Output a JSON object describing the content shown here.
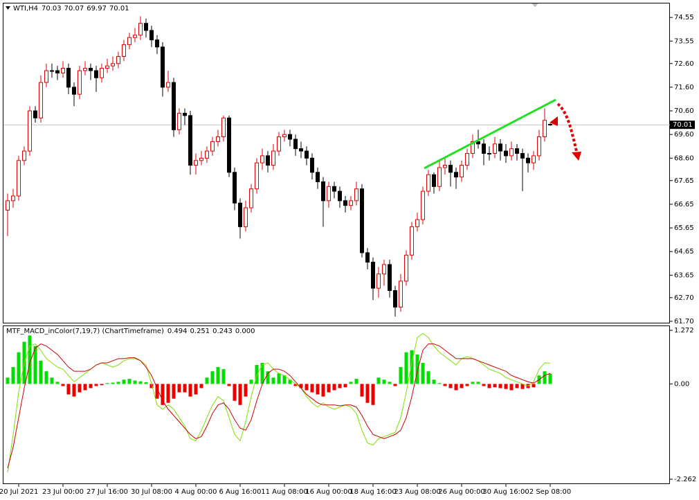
{
  "chart_data": [
    {
      "type": "candlestick",
      "symbol": "WTI,H4",
      "categories": [
        null,
        null,
        "20 Jul 2021",
        null,
        null,
        null,
        null,
        null,
        null,
        null,
        "23 Jul 00:00",
        null,
        null,
        null,
        null,
        null,
        null,
        null,
        "27 Jul 16:00",
        null,
        null,
        null,
        null,
        null,
        null,
        null,
        "30 Jul 08:00",
        null,
        null,
        null,
        null,
        null,
        null,
        null,
        "4 Aug 00:00",
        null,
        null,
        null,
        null,
        null,
        null,
        null,
        "6 Aug 16:00",
        null,
        null,
        null,
        null,
        null,
        null,
        null,
        "11 Aug 08:00",
        null,
        null,
        null,
        null,
        null,
        null,
        null,
        "16 Aug 00:00",
        null,
        null,
        null,
        null,
        null,
        null,
        null,
        "18 Aug 16:00",
        null,
        null,
        null,
        null,
        null,
        null,
        null,
        "23 Aug 08:00",
        null,
        null,
        null,
        null,
        null,
        null,
        null,
        "26 Aug 00:00",
        null,
        null,
        null,
        null,
        null,
        null,
        null,
        "30 Aug 16:00",
        null,
        null,
        null,
        null,
        null,
        null,
        null,
        "2 Sep 08:00"
      ],
      "open": [
        66.4,
        66.8,
        67.0,
        68.5,
        68.9,
        70.6,
        70.3,
        71.8,
        72.3,
        72.3,
        72.2,
        72.4,
        71.6,
        71.3,
        72.3,
        72.4,
        72.3,
        72.0,
        72.4,
        72.5,
        72.6,
        72.9,
        73.4,
        73.7,
        73.8,
        74.3,
        74.0,
        73.6,
        73.3,
        71.6,
        71.8,
        69.8,
        70.5,
        70.4,
        68.3,
        68.5,
        68.6,
        68.9,
        69.3,
        69.5,
        70.3,
        68.0,
        66.7,
        65.7,
        66.5,
        67.3,
        68.4,
        68.7,
        68.3,
        68.9,
        69.5,
        69.6,
        69.4,
        69.0,
        68.9,
        68.6,
        68.0,
        67.6,
        66.8,
        67.4,
        67.2,
        66.8,
        66.6,
        66.8,
        67.3,
        64.6,
        64.2,
        63.1,
        63.7,
        64.1,
        63.0,
        62.3,
        63.4,
        64.5,
        65.7,
        66.0,
        67.2,
        67.9,
        67.4,
        68.2,
        68.3,
        68.0,
        67.8,
        68.3,
        68.8,
        69.3,
        69.2,
        68.8,
        68.8,
        69.2,
        68.9,
        68.7,
        69.0,
        68.8,
        68.6,
        68.4,
        68.7,
        69.5,
        70.03
      ],
      "high": [
        67.1,
        67.3,
        68.7,
        69.1,
        70.8,
        70.8,
        72.1,
        72.6,
        72.6,
        72.5,
        72.7,
        72.6,
        71.8,
        72.5,
        72.7,
        72.6,
        72.5,
        72.6,
        72.8,
        72.9,
        73.1,
        73.6,
        73.9,
        74.1,
        74.6,
        74.5,
        74.2,
        73.8,
        73.5,
        72.3,
        72.0,
        70.7,
        70.7,
        70.6,
        68.8,
        68.9,
        69.1,
        69.5,
        69.8,
        70.4,
        70.4,
        68.2,
        66.9,
        66.8,
        67.5,
        68.6,
        69.0,
        68.9,
        69.2,
        69.7,
        69.8,
        69.8,
        69.6,
        69.3,
        69.1,
        68.8,
        68.2,
        67.8,
        67.6,
        67.6,
        67.4,
        67.0,
        67.0,
        67.6,
        67.5,
        64.8,
        64.4,
        64.0,
        64.3,
        64.3,
        63.2,
        63.7,
        64.7,
        65.9,
        66.3,
        67.4,
        68.1,
        68.0,
        68.5,
        68.6,
        68.5,
        68.2,
        68.5,
        69.0,
        69.6,
        69.8,
        69.4,
        69.1,
        69.5,
        69.4,
        69.2,
        69.3,
        69.2,
        69.0,
        68.8,
        68.9,
        69.8,
        70.7,
        70.07
      ],
      "low": [
        65.3,
        66.5,
        66.8,
        68.3,
        68.7,
        70.1,
        70.1,
        71.6,
        72.0,
        71.9,
        72.0,
        71.3,
        70.8,
        71.1,
        72.1,
        71.9,
        71.4,
        71.8,
        72.2,
        72.3,
        72.4,
        72.7,
        73.2,
        73.5,
        73.6,
        73.7,
        73.3,
        73.0,
        71.2,
        71.4,
        69.5,
        69.6,
        70.0,
        67.9,
        67.9,
        68.3,
        68.4,
        68.7,
        69.1,
        69.3,
        67.8,
        66.4,
        65.2,
        65.5,
        66.3,
        67.1,
        68.1,
        68.0,
        68.1,
        68.7,
        69.3,
        69.1,
        68.7,
        68.6,
        68.3,
        67.7,
        67.3,
        65.7,
        66.5,
        66.9,
        66.5,
        66.3,
        66.4,
        66.6,
        64.4,
        63.9,
        62.6,
        62.7,
        63.2,
        62.7,
        61.9,
        62.1,
        63.2,
        64.3,
        65.5,
        65.8,
        67.0,
        67.1,
        67.2,
        67.9,
        67.4,
        67.3,
        67.6,
        68.1,
        68.6,
        69.0,
        68.3,
        68.5,
        68.6,
        68.5,
        68.4,
        68.5,
        68.5,
        67.2,
        68.0,
        68.1,
        68.5,
        69.3,
        69.97
      ],
      "close": [
        66.8,
        67.0,
        68.5,
        68.9,
        70.6,
        70.3,
        71.8,
        72.3,
        72.3,
        72.2,
        72.4,
        71.6,
        71.3,
        72.3,
        72.4,
        72.3,
        72.0,
        72.4,
        72.5,
        72.6,
        72.9,
        73.4,
        73.7,
        73.8,
        74.3,
        74.0,
        73.6,
        73.3,
        71.6,
        71.8,
        69.8,
        70.5,
        70.4,
        68.3,
        68.5,
        68.6,
        68.9,
        69.3,
        69.5,
        70.3,
        68.0,
        66.7,
        65.7,
        66.5,
        67.3,
        68.4,
        68.7,
        68.3,
        68.9,
        69.5,
        69.6,
        69.4,
        69.0,
        68.9,
        68.6,
        68.0,
        67.6,
        66.8,
        67.4,
        67.2,
        66.8,
        66.6,
        66.8,
        67.3,
        64.6,
        64.2,
        63.1,
        63.7,
        64.1,
        63.0,
        62.3,
        63.4,
        64.5,
        65.7,
        66.0,
        67.2,
        67.9,
        67.4,
        68.2,
        68.3,
        68.0,
        67.8,
        68.3,
        68.8,
        69.3,
        69.2,
        68.8,
        68.8,
        69.2,
        68.9,
        68.7,
        69.0,
        68.8,
        68.6,
        68.4,
        68.7,
        69.5,
        70.2,
        70.01
      ],
      "up_color": "#e00000",
      "down_color": "#000000",
      "ylim": [
        61.64,
        75.17
      ],
      "yticks": [
        74.55,
        73.55,
        {
          "value": 72.6,
          "label": "72.60"
        },
        {
          "value": 71.6,
          "label": "71.60"
        },
        {
          "value": 70.6,
          "label": "70.60"
        },
        {
          "value": 69.6,
          "label": "69.60"
        },
        {
          "value": 68.6,
          "label": "68.60"
        },
        67.65,
        66.65,
        65.65,
        64.65,
        63.65,
        {
          "value": 62.7,
          "label": "62.70"
        },
        {
          "value": 61.7,
          "label": "61.70"
        }
      ],
      "grid": false
    },
    {
      "type": "macd",
      "title": "MTF_MACD_inColor(7,19,7) (ChartTimeframe)",
      "histogram": {
        "up_color": "#00dd00",
        "down_color": "#ee0000",
        "values": [
          0.15,
          0.4,
          0.75,
          1.0,
          1.15,
          0.9,
          0.55,
          0.3,
          0.15,
          0.05,
          -0.05,
          -0.25,
          -0.3,
          -0.2,
          -0.15,
          -0.1,
          -0.05,
          -0.03,
          0.02,
          0.03,
          0.05,
          0.1,
          0.12,
          0.08,
          0.06,
          0.04,
          -0.1,
          -0.35,
          -0.5,
          -0.45,
          -0.35,
          -0.2,
          -0.2,
          -0.3,
          -0.25,
          -0.1,
          0.15,
          0.3,
          0.4,
          0.35,
          -0.05,
          -0.4,
          -0.5,
          -0.3,
          0.1,
          0.45,
          0.5,
          0.3,
          0.15,
          0.25,
          0.2,
          0.1,
          -0.05,
          -0.1,
          -0.15,
          -0.2,
          -0.25,
          -0.3,
          -0.2,
          -0.15,
          -0.1,
          -0.08,
          0.05,
          0.12,
          -0.3,
          -0.45,
          -0.5,
          0.15,
          0.1,
          0.05,
          -0.05,
          0.4,
          0.75,
          0.8,
          0.7,
          0.5,
          0.3,
          0.1,
          0.02,
          -0.05,
          -0.1,
          -0.15,
          -0.1,
          -0.05,
          0.05,
          0.05,
          -0.05,
          -0.1,
          -0.08,
          -0.1,
          -0.12,
          -0.15,
          -0.1,
          -0.12,
          -0.1,
          -0.08,
          0.2,
          0.3,
          0.243
        ]
      },
      "series": [
        {
          "color": "#7fe000",
          "values": [
            -2.1,
            -1.2,
            -0.2,
            0.5,
            0.9,
            0.95,
            0.8,
            0.6,
            0.5,
            0.4,
            0.35,
            0.2,
            0.05,
            0.15,
            0.25,
            0.35,
            0.45,
            0.5,
            0.45,
            0.4,
            0.45,
            0.55,
            0.6,
            0.6,
            0.55,
            0.45,
            0.0,
            -0.5,
            -0.6,
            -0.5,
            -0.6,
            -0.8,
            -1.0,
            -1.3,
            -1.35,
            -1.1,
            -0.8,
            -0.5,
            -0.3,
            -0.4,
            -0.8,
            -1.2,
            -1.35,
            -0.9,
            -0.3,
            0.2,
            0.45,
            0.5,
            0.35,
            0.25,
            0.2,
            0.1,
            0.0,
            -0.1,
            -0.3,
            -0.45,
            -0.55,
            -0.45,
            -0.55,
            -0.6,
            -0.55,
            -0.5,
            -0.55,
            -0.7,
            -1.1,
            -1.4,
            -1.45,
            -1.3,
            -1.25,
            -1.2,
            -1.15,
            -0.8,
            -0.2,
            0.5,
            1.1,
            1.2,
            1.1,
            0.9,
            0.75,
            0.65,
            0.55,
            0.45,
            0.6,
            0.65,
            0.6,
            0.55,
            0.45,
            0.35,
            0.3,
            0.25,
            0.15,
            0.1,
            0.05,
            0.0,
            -0.05,
            0.05,
            0.35,
            0.5,
            0.494
          ]
        },
        {
          "color": "#cc0000",
          "values": [
            -2.0,
            -1.5,
            -0.8,
            -0.1,
            0.5,
            0.85,
            0.95,
            0.9,
            0.8,
            0.7,
            0.55,
            0.4,
            0.3,
            0.3,
            0.3,
            0.35,
            0.45,
            0.5,
            0.5,
            0.55,
            0.6,
            0.6,
            0.62,
            0.62,
            0.55,
            0.4,
            0.2,
            -0.1,
            -0.4,
            -0.6,
            -0.75,
            -0.9,
            -1.05,
            -1.2,
            -1.3,
            -1.25,
            -1.0,
            -0.7,
            -0.5,
            -0.45,
            -0.6,
            -0.85,
            -1.05,
            -1.1,
            -0.85,
            -0.4,
            0.0,
            0.25,
            0.35,
            0.35,
            0.3,
            0.2,
            0.05,
            -0.1,
            -0.25,
            -0.35,
            -0.45,
            -0.5,
            -0.5,
            -0.5,
            -0.52,
            -0.5,
            -0.5,
            -0.55,
            -0.75,
            -1.0,
            -1.2,
            -1.25,
            -1.3,
            -1.25,
            -1.2,
            -1.1,
            -0.8,
            -0.3,
            0.3,
            0.8,
            0.95,
            0.95,
            0.9,
            0.8,
            0.7,
            0.6,
            0.6,
            0.6,
            0.6,
            0.55,
            0.5,
            0.45,
            0.4,
            0.35,
            0.3,
            0.2,
            0.15,
            0.1,
            0.05,
            0.02,
            0.1,
            0.2,
            0.251
          ]
        }
      ],
      "zero_buffer": {
        "value": 0,
        "label": "0.000"
      },
      "ylim": [
        -2.262,
        1.272
      ],
      "yticks": [
        1.272,
        {
          "value": 0,
          "label": "0.00"
        },
        -2.262
      ]
    }
  ]
}
